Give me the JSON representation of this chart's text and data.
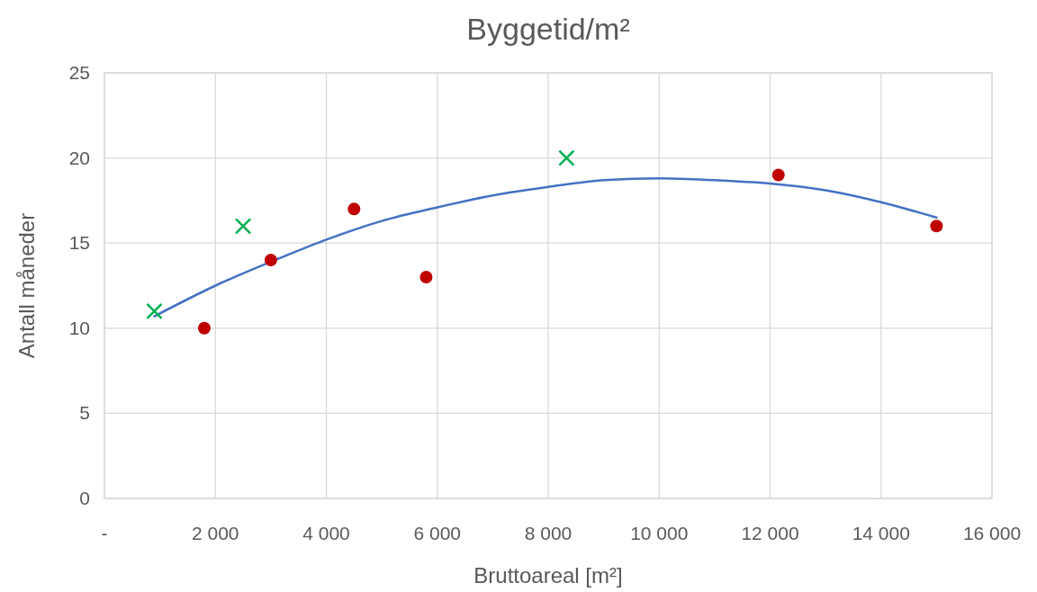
{
  "chart_data": {
    "type": "scatter",
    "title": "Byggetid/m²",
    "xlabel": "Bruttoareal [m²]",
    "ylabel": "Antall måneder",
    "xlim": [
      0,
      16000
    ],
    "ylim": [
      0,
      25
    ],
    "xticks": [
      {
        "value": 0,
        "label": "-"
      },
      {
        "value": 2000,
        "label": "2 000"
      },
      {
        "value": 4000,
        "label": "4 000"
      },
      {
        "value": 6000,
        "label": "6 000"
      },
      {
        "value": 8000,
        "label": "8 000"
      },
      {
        "value": 10000,
        "label": "10 000"
      },
      {
        "value": 12000,
        "label": "12 000"
      },
      {
        "value": 14000,
        "label": "14 000"
      },
      {
        "value": 16000,
        "label": "16 000"
      }
    ],
    "yticks": [
      0,
      5,
      10,
      15,
      20,
      25
    ],
    "grid": true,
    "series": [
      {
        "type": "line",
        "color": "#4472c4",
        "marker": "none",
        "line_style": "solid",
        "x": [
          900,
          2000,
          3300,
          4000,
          5000,
          6000,
          7000,
          8000,
          9000,
          10000,
          11000,
          12000,
          13000,
          14000,
          15000
        ],
        "values": [
          10.7,
          12.5,
          14.3,
          15.2,
          16.3,
          17.1,
          17.8,
          18.3,
          18.7,
          18.8,
          18.7,
          18.5,
          18.1,
          17.4,
          16.5
        ]
      },
      {
        "color": "#c00000",
        "marker": "circle",
        "x": [
          1800,
          3000,
          4500,
          5800,
          12150,
          15000
        ],
        "values": [
          10,
          14,
          17,
          13,
          19,
          16
        ]
      },
      {
        "color": "#00b050",
        "marker": "cross",
        "x": [
          900,
          2500,
          8330
        ],
        "values": [
          11,
          16,
          20
        ]
      }
    ]
  }
}
